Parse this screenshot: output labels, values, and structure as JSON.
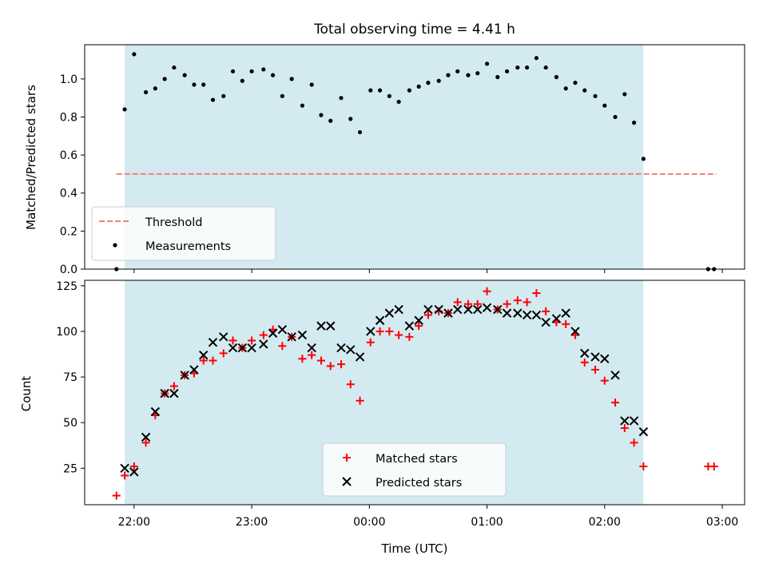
{
  "chart_data": [
    {
      "type": "scatter",
      "title": "Total observing time = 4.41 h",
      "xlabel": "",
      "ylabel": "Matched/Predicted stars",
      "ylim": [
        0,
        1.18
      ],
      "yticks": [
        0.0,
        0.2,
        0.4,
        0.6,
        0.8,
        1.0
      ],
      "ytick_labels": [
        "0.0",
        "0.2",
        "0.4",
        "0.6",
        "0.8",
        "1.0"
      ],
      "x_unit": "hours since 22:00 UTC",
      "xlim": [
        -0.42,
        5.19
      ],
      "shaded_span": [
        -0.08,
        4.33
      ],
      "shade_color": "#d3eaf1",
      "threshold": {
        "name": "Threshold",
        "value": 0.5,
        "x_range": [
          -0.15,
          4.95
        ],
        "color": "#f08080"
      },
      "measurements": {
        "name": "Measurements",
        "color": "#000000",
        "points": [
          [
            -0.15,
            0.0
          ],
          [
            -0.08,
            0.84
          ],
          [
            0.0,
            1.13
          ],
          [
            0.1,
            0.93
          ],
          [
            0.18,
            0.95
          ],
          [
            0.26,
            1.0
          ],
          [
            0.34,
            1.06
          ],
          [
            0.43,
            1.02
          ],
          [
            0.51,
            0.97
          ],
          [
            0.59,
            0.97
          ],
          [
            0.67,
            0.89
          ],
          [
            0.76,
            0.91
          ],
          [
            0.84,
            1.04
          ],
          [
            0.92,
            0.99
          ],
          [
            1.0,
            1.04
          ],
          [
            1.1,
            1.05
          ],
          [
            1.18,
            1.02
          ],
          [
            1.26,
            0.91
          ],
          [
            1.34,
            1.0
          ],
          [
            1.43,
            0.86
          ],
          [
            1.51,
            0.97
          ],
          [
            1.59,
            0.81
          ],
          [
            1.67,
            0.78
          ],
          [
            1.76,
            0.9
          ],
          [
            1.84,
            0.79
          ],
          [
            1.92,
            0.72
          ],
          [
            2.01,
            0.94
          ],
          [
            2.09,
            0.94
          ],
          [
            2.17,
            0.91
          ],
          [
            2.25,
            0.88
          ],
          [
            2.34,
            0.94
          ],
          [
            2.42,
            0.96
          ],
          [
            2.5,
            0.98
          ],
          [
            2.59,
            0.99
          ],
          [
            2.67,
            1.02
          ],
          [
            2.75,
            1.04
          ],
          [
            2.84,
            1.02
          ],
          [
            2.92,
            1.03
          ],
          [
            3.0,
            1.08
          ],
          [
            3.09,
            1.01
          ],
          [
            3.17,
            1.04
          ],
          [
            3.26,
            1.06
          ],
          [
            3.34,
            1.06
          ],
          [
            3.42,
            1.11
          ],
          [
            3.5,
            1.06
          ],
          [
            3.59,
            1.01
          ],
          [
            3.67,
            0.95
          ],
          [
            3.75,
            0.98
          ],
          [
            3.83,
            0.94
          ],
          [
            3.92,
            0.91
          ],
          [
            4.0,
            0.86
          ],
          [
            4.09,
            0.8
          ],
          [
            4.17,
            0.92
          ],
          [
            4.25,
            0.77
          ],
          [
            4.33,
            0.58
          ],
          [
            4.88,
            0.0
          ],
          [
            4.93,
            0.0
          ]
        ]
      },
      "legend": [
        "Threshold",
        "Measurements"
      ],
      "legend_position": "lower-left"
    },
    {
      "type": "scatter",
      "xlabel": "Time (UTC)",
      "ylabel": "Count",
      "ylim": [
        5,
        128
      ],
      "yticks": [
        25,
        50,
        75,
        100,
        125
      ],
      "ytick_labels": [
        "25",
        "50",
        "75",
        "100",
        "125"
      ],
      "xticks": [
        0,
        1,
        2,
        3,
        4,
        5
      ],
      "xtick_labels": [
        "22:00",
        "23:00",
        "00:00",
        "01:00",
        "02:00",
        "03:00"
      ],
      "series": [
        {
          "name": "Matched stars",
          "marker": "plus",
          "color": "#ff0000",
          "points": [
            [
              -0.15,
              10
            ],
            [
              -0.08,
              21
            ],
            [
              0.0,
              26
            ],
            [
              0.1,
              39
            ],
            [
              0.18,
              54
            ],
            [
              0.26,
              66
            ],
            [
              0.34,
              70
            ],
            [
              0.43,
              76
            ],
            [
              0.51,
              77
            ],
            [
              0.59,
              84
            ],
            [
              0.67,
              84
            ],
            [
              0.76,
              88
            ],
            [
              0.84,
              95
            ],
            [
              0.92,
              91
            ],
            [
              1.0,
              95
            ],
            [
              1.1,
              98
            ],
            [
              1.18,
              101
            ],
            [
              1.26,
              92
            ],
            [
              1.34,
              97
            ],
            [
              1.43,
              85
            ],
            [
              1.51,
              87
            ],
            [
              1.59,
              84
            ],
            [
              1.67,
              81
            ],
            [
              1.76,
              82
            ],
            [
              1.84,
              71
            ],
            [
              1.92,
              62
            ],
            [
              2.01,
              94
            ],
            [
              2.09,
              100
            ],
            [
              2.17,
              100
            ],
            [
              2.25,
              98
            ],
            [
              2.34,
              97
            ],
            [
              2.42,
              103
            ],
            [
              2.5,
              109
            ],
            [
              2.59,
              111
            ],
            [
              2.67,
              110
            ],
            [
              2.75,
              116
            ],
            [
              2.84,
              115
            ],
            [
              2.92,
              115
            ],
            [
              3.0,
              122
            ],
            [
              3.09,
              112
            ],
            [
              3.17,
              115
            ],
            [
              3.26,
              117
            ],
            [
              3.34,
              116
            ],
            [
              3.42,
              121
            ],
            [
              3.5,
              111
            ],
            [
              3.59,
              105
            ],
            [
              3.67,
              104
            ],
            [
              3.75,
              98
            ],
            [
              3.83,
              83
            ],
            [
              3.92,
              79
            ],
            [
              4.0,
              73
            ],
            [
              4.09,
              61
            ],
            [
              4.17,
              47
            ],
            [
              4.25,
              39
            ],
            [
              4.33,
              26
            ],
            [
              4.88,
              26
            ],
            [
              4.93,
              26
            ]
          ]
        },
        {
          "name": "Predicted stars",
          "marker": "x",
          "color": "#000000",
          "points": [
            [
              -0.08,
              25
            ],
            [
              0.0,
              23
            ],
            [
              0.1,
              42
            ],
            [
              0.18,
              56
            ],
            [
              0.26,
              66
            ],
            [
              0.34,
              66
            ],
            [
              0.43,
              76
            ],
            [
              0.51,
              79
            ],
            [
              0.59,
              87
            ],
            [
              0.67,
              94
            ],
            [
              0.76,
              97
            ],
            [
              0.84,
              91
            ],
            [
              0.92,
              91
            ],
            [
              1.0,
              91
            ],
            [
              1.1,
              93
            ],
            [
              1.18,
              99
            ],
            [
              1.26,
              101
            ],
            [
              1.34,
              97
            ],
            [
              1.43,
              98
            ],
            [
              1.51,
              91
            ],
            [
              1.59,
              103
            ],
            [
              1.67,
              103
            ],
            [
              1.76,
              91
            ],
            [
              1.84,
              90
            ],
            [
              1.92,
              86
            ],
            [
              2.01,
              100
            ],
            [
              2.09,
              106
            ],
            [
              2.17,
              110
            ],
            [
              2.25,
              112
            ],
            [
              2.34,
              103
            ],
            [
              2.42,
              106
            ],
            [
              2.5,
              112
            ],
            [
              2.59,
              112
            ],
            [
              2.67,
              110
            ],
            [
              2.75,
              112
            ],
            [
              2.84,
              112
            ],
            [
              2.92,
              112
            ],
            [
              3.0,
              113
            ],
            [
              3.09,
              112
            ],
            [
              3.17,
              110
            ],
            [
              3.26,
              110
            ],
            [
              3.34,
              109
            ],
            [
              3.42,
              109
            ],
            [
              3.5,
              105
            ],
            [
              3.59,
              107
            ],
            [
              3.67,
              110
            ],
            [
              3.75,
              100
            ],
            [
              3.83,
              88
            ],
            [
              3.92,
              86
            ],
            [
              4.0,
              85
            ],
            [
              4.09,
              76
            ],
            [
              4.17,
              51
            ],
            [
              4.25,
              51
            ],
            [
              4.33,
              45
            ]
          ]
        }
      ],
      "legend": [
        "Matched stars",
        "Predicted stars"
      ],
      "legend_position": "lower-center"
    }
  ]
}
